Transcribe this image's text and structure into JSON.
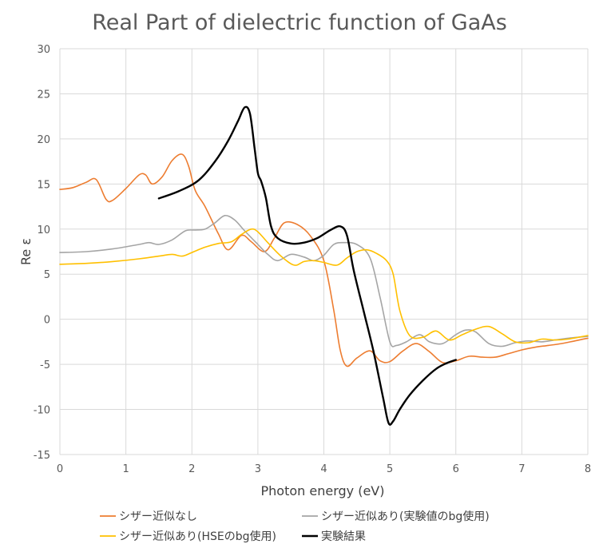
{
  "chart_data": {
    "type": "line",
    "title": "Real Part of dielectric function of GaAs",
    "xlabel": "Photon energy (eV)",
    "ylabel": "Re ε",
    "xlim": [
      0,
      8
    ],
    "ylim": [
      -15,
      30
    ],
    "xticks": [
      "0",
      "1",
      "2",
      "3",
      "4",
      "5",
      "6",
      "7",
      "8"
    ],
    "yticks": [
      "-15",
      "-10",
      "-5",
      "0",
      "5",
      "10",
      "15",
      "20",
      "25",
      "30"
    ],
    "grid": true,
    "legend_position": "bottom",
    "series": [
      {
        "name": "シザー近似なし",
        "color": "#ed7d31",
        "x": [
          0,
          0.2,
          0.4,
          0.55,
          0.7,
          0.8,
          1.0,
          1.2,
          1.3,
          1.4,
          1.55,
          1.7,
          1.85,
          1.95,
          2.05,
          2.2,
          2.4,
          2.55,
          2.75,
          2.9,
          3.1,
          3.25,
          3.4,
          3.6,
          3.8,
          4.0,
          4.15,
          4.25,
          4.35,
          4.5,
          4.7,
          4.85,
          5.0,
          5.2,
          5.4,
          5.6,
          5.8,
          6.0,
          6.2,
          6.4,
          6.6,
          6.8,
          7.0,
          7.2,
          7.4,
          7.6,
          7.8,
          8.0
        ],
        "y": [
          14.4,
          14.6,
          15.2,
          15.5,
          13.3,
          13.2,
          14.5,
          16.0,
          16.0,
          15.0,
          15.8,
          17.6,
          18.3,
          17.0,
          14.3,
          12.5,
          9.5,
          7.7,
          9.3,
          8.6,
          7.5,
          9.0,
          10.7,
          10.5,
          9.2,
          6.5,
          1.0,
          -3.5,
          -5.2,
          -4.3,
          -3.5,
          -4.6,
          -4.7,
          -3.5,
          -2.7,
          -3.6,
          -4.8,
          -4.6,
          -4.1,
          -4.2,
          -4.2,
          -3.8,
          -3.4,
          -3.1,
          -2.9,
          -2.7,
          -2.4,
          -2.1
        ]
      },
      {
        "name": "シザー近似あり(実験値のbg使用)",
        "color": "#a5a5a5",
        "x": [
          0,
          0.4,
          0.8,
          1.2,
          1.35,
          1.5,
          1.7,
          1.9,
          2.05,
          2.2,
          2.35,
          2.5,
          2.65,
          2.8,
          3.0,
          3.15,
          3.3,
          3.5,
          3.7,
          3.85,
          4.0,
          4.15,
          4.3,
          4.5,
          4.7,
          4.85,
          5.0,
          5.1,
          5.25,
          5.45,
          5.6,
          5.8,
          6.0,
          6.15,
          6.3,
          6.5,
          6.7,
          6.9,
          7.1,
          7.3,
          7.5,
          7.7,
          8.0
        ],
        "y": [
          7.4,
          7.5,
          7.8,
          8.3,
          8.5,
          8.3,
          8.8,
          9.8,
          9.9,
          10.0,
          10.7,
          11.5,
          11.0,
          9.8,
          8.3,
          7.2,
          6.5,
          7.2,
          6.9,
          6.5,
          7.1,
          8.3,
          8.5,
          8.3,
          6.8,
          2.5,
          -2.5,
          -2.9,
          -2.5,
          -1.7,
          -2.5,
          -2.7,
          -1.7,
          -1.2,
          -1.4,
          -2.7,
          -3.0,
          -2.6,
          -2.4,
          -2.5,
          -2.3,
          -2.1,
          -1.9
        ]
      },
      {
        "name": "シザー近似あり(HSEのbg使用)",
        "color": "#ffc000",
        "x": [
          0,
          0.4,
          0.8,
          1.2,
          1.5,
          1.7,
          1.85,
          2.0,
          2.2,
          2.4,
          2.6,
          2.75,
          2.9,
          3.0,
          3.15,
          3.35,
          3.55,
          3.7,
          3.85,
          4.0,
          4.2,
          4.35,
          4.5,
          4.65,
          4.8,
          4.95,
          5.05,
          5.15,
          5.3,
          5.5,
          5.7,
          5.9,
          6.1,
          6.3,
          6.5,
          6.7,
          6.9,
          7.1,
          7.3,
          7.5,
          7.7,
          8.0
        ],
        "y": [
          6.1,
          6.2,
          6.4,
          6.7,
          7.0,
          7.2,
          7.0,
          7.4,
          8.0,
          8.4,
          8.6,
          9.4,
          10.0,
          9.7,
          8.5,
          7.0,
          6.0,
          6.4,
          6.5,
          6.3,
          6.0,
          6.8,
          7.5,
          7.7,
          7.3,
          6.5,
          5.0,
          1.0,
          -1.8,
          -2.0,
          -1.3,
          -2.3,
          -1.7,
          -1.1,
          -0.8,
          -1.6,
          -2.5,
          -2.6,
          -2.2,
          -2.3,
          -2.2,
          -1.8
        ]
      },
      {
        "name": "実験結果",
        "color": "#000000",
        "x": [
          1.5,
          1.8,
          2.1,
          2.35,
          2.55,
          2.7,
          2.8,
          2.88,
          2.95,
          3.0,
          3.05,
          3.12,
          3.2,
          3.3,
          3.5,
          3.7,
          3.9,
          4.1,
          4.25,
          4.35,
          4.45,
          4.6,
          4.75,
          4.9,
          4.98,
          5.05,
          5.15,
          5.3,
          5.5,
          5.7,
          5.85,
          6.0
        ],
        "y": [
          13.4,
          14.2,
          15.4,
          17.5,
          19.8,
          22.0,
          23.5,
          22.8,
          19.0,
          16.2,
          15.3,
          13.5,
          10.3,
          9.0,
          8.4,
          8.5,
          9.0,
          9.9,
          10.3,
          9.3,
          5.5,
          1.0,
          -3.5,
          -8.8,
          -11.5,
          -11.3,
          -10.0,
          -8.4,
          -6.8,
          -5.5,
          -4.9,
          -4.5
        ]
      }
    ]
  }
}
